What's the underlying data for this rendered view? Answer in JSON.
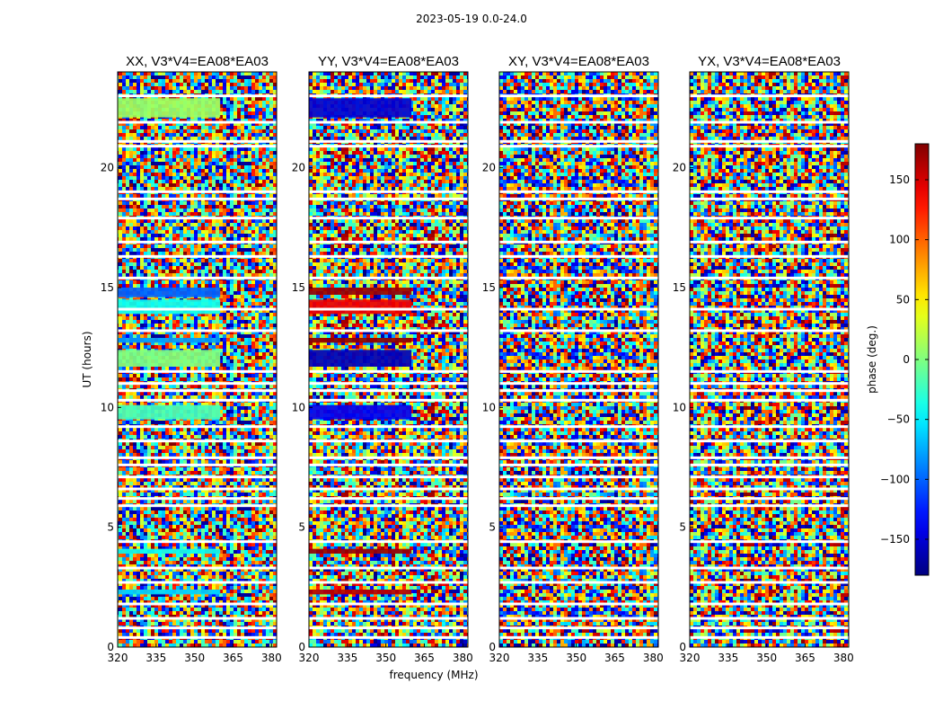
{
  "chart_data": {
    "type": "heatmap",
    "suptitle": "2023-05-19 0.0-24.0",
    "xlabel": "frequency (MHz)",
    "ylabel": "UT (hours)",
    "xlim": [
      320,
      382
    ],
    "ylim": [
      0,
      24
    ],
    "xticks": [
      320,
      335,
      350,
      365,
      380
    ],
    "yticks": [
      0,
      5,
      10,
      15,
      20
    ],
    "panels": [
      {
        "title": "XX, V3*V4=EA08*EA03",
        "correlation": "XX",
        "baseline": "V3*V4=EA08*EA03",
        "coherent_blocks": [
          {
            "t0": 22.1,
            "t1": 22.9,
            "f1": 360,
            "phase": 10
          },
          {
            "t0": 14.6,
            "t1": 15.0,
            "f1": 360,
            "phase": -100
          },
          {
            "t0": 13.9,
            "t1": 14.5,
            "f1": 360,
            "phase": -40
          },
          {
            "t0": 12.7,
            "t1": 12.9,
            "f1": 360,
            "phase": -80
          },
          {
            "t0": 11.7,
            "t1": 12.4,
            "f1": 360,
            "phase": 0
          },
          {
            "t0": 9.5,
            "t1": 10.1,
            "f1": 360,
            "phase": -20
          },
          {
            "t0": 3.9,
            "t1": 4.1,
            "f1": 360,
            "phase": -40
          },
          {
            "t0": 2.2,
            "t1": 2.4,
            "f1": 360,
            "phase": -60
          }
        ]
      },
      {
        "title": "YY, V3*V4=EA08*EA03",
        "correlation": "YY",
        "baseline": "V3*V4=EA08*EA03",
        "coherent_blocks": [
          {
            "t0": 22.1,
            "t1": 22.9,
            "f1": 360,
            "phase": -150
          },
          {
            "t0": 14.7,
            "t1": 15.0,
            "f1": 360,
            "phase": 170
          },
          {
            "t0": 13.9,
            "t1": 14.5,
            "f1": 360,
            "phase": 140
          },
          {
            "t0": 12.7,
            "t1": 12.9,
            "f1": 360,
            "phase": 175
          },
          {
            "t0": 11.7,
            "t1": 12.4,
            "f1": 360,
            "phase": -160
          },
          {
            "t0": 9.5,
            "t1": 10.1,
            "f1": 360,
            "phase": -140
          },
          {
            "t0": 3.9,
            "t1": 4.1,
            "f1": 360,
            "phase": 170
          },
          {
            "t0": 2.2,
            "t1": 2.4,
            "f1": 360,
            "phase": 160
          }
        ]
      },
      {
        "title": "XY, V3*V4=EA08*EA03",
        "correlation": "XY",
        "baseline": "V3*V4=EA08*EA03",
        "coherent_blocks": []
      },
      {
        "title": "YX, V3*V4=EA08*EA03",
        "correlation": "YX",
        "baseline": "V3*V4=EA08*EA03",
        "coherent_blocks": []
      }
    ],
    "flagged_hours": [
      23.0,
      21.9,
      21.1,
      20.9,
      19.0,
      18.7,
      17.9,
      16.9,
      16.3,
      15.4,
      14.1,
      13.2,
      11.5,
      11.0,
      10.7,
      10.3,
      9.2,
      8.6,
      7.9,
      7.6,
      7.1,
      6.6,
      6.2,
      5.9,
      4.4,
      3.3,
      2.7,
      1.8,
      1.2,
      0.8,
      0.4
    ],
    "colorbar": {
      "label": "phase (deg.)",
      "range": [
        -180,
        180
      ],
      "ticks": [
        150,
        100,
        50,
        0,
        -50,
        -100,
        -150
      ],
      "tick_labels": [
        "150",
        "100",
        "50",
        "0",
        "−50",
        "−100",
        "−150"
      ],
      "colormap": "jet"
    }
  }
}
